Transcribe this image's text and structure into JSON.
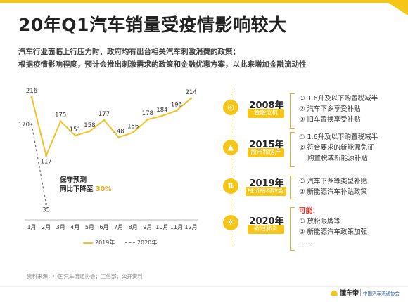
{
  "title": "20年Q1汽车销量受疫情影响较大",
  "subtitle": {
    "line1": "汽车行业面临上行压力时，政府均有出台相关汽车刺激消费的政策；",
    "line2": "根据疫情影响程度，预计会推出刺激需求的政策和金融优惠方案，以此来增加金融流动性"
  },
  "chart_data": {
    "type": "line",
    "categories": [
      "1月",
      "2月",
      "3月",
      "4月",
      "5月",
      "6月",
      "7月",
      "8月",
      "9月",
      "10月",
      "11月",
      "12月"
    ],
    "series": [
      {
        "name": "2019年",
        "values": [
          216,
          117,
          175,
          151,
          158,
          177,
          148,
          156,
          178,
          184,
          193,
          214
        ],
        "color": "#f2c12e",
        "style": "solid"
      },
      {
        "name": "2020年",
        "values": [
          170,
          35,
          null,
          null,
          null,
          null,
          null,
          null,
          null,
          null,
          null,
          null
        ],
        "color": "#777777",
        "style": "dashed"
      }
    ],
    "ylim": [
      0,
      240
    ],
    "grid": false
  },
  "annotation": {
    "line1": "保守预测",
    "line2_prefix": "同比下降至",
    "highlight": "30%"
  },
  "legend": {
    "s2019": "2019年",
    "s2020": "2020年"
  },
  "source": "资料来源：中国汽车流通协会；工信部；公开资料",
  "timeline": [
    {
      "year": "2008年",
      "tag": "金融危机",
      "icon": "coins-icon",
      "items": [
        "① 1.6升及以下购置税减半",
        "② 汽车下乡享受补贴",
        "③ 旧车置换享受补贴"
      ]
    },
    {
      "year": "2015年",
      "tag": "股市和房产",
      "icon": "warning-icon",
      "items": [
        "① 1.6升及以下购置税减半",
        "② 符合要求的新能源免征",
        "    购置税或新能源补贴"
      ]
    },
    {
      "year": "2019年",
      "tag": "经济结构转型",
      "icon": "arrows-icon",
      "items": [
        "① 汽车下乡等类型补贴",
        "② 新能源汽车补贴政策"
      ]
    },
    {
      "year": "2020年",
      "tag": "新冠肺炎",
      "icon": "virus-icon",
      "header": "可能：",
      "items": [
        "① 放松限牌等",
        "② 新能源汽车政策加强",
        "……"
      ]
    }
  ],
  "footer": {
    "brand": "懂车帝",
    "partner": "中国汽车流通协会"
  },
  "colors": {
    "accent": "#f5c518",
    "line2019": "#f2c12e",
    "line2020": "#777777",
    "highlight": "#e2a816"
  }
}
